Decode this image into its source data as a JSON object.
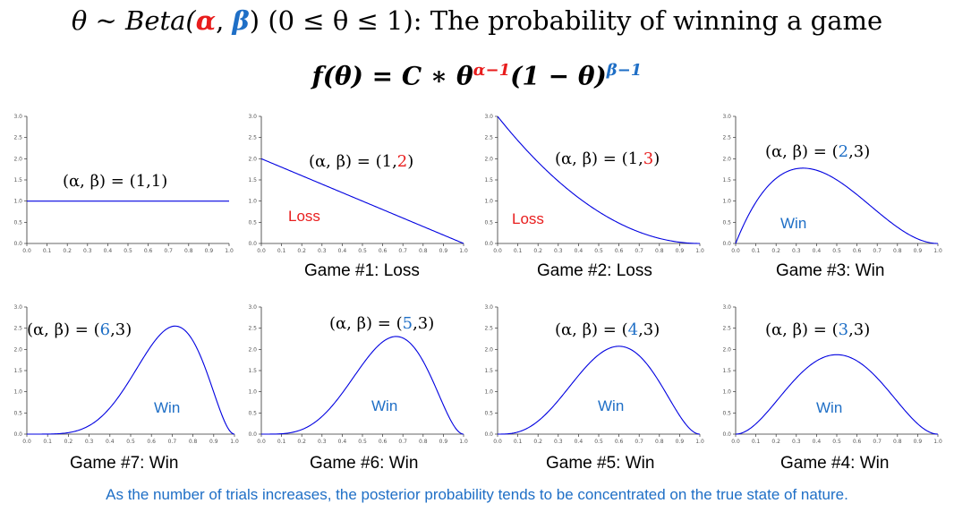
{
  "header": {
    "line1_prefix": "θ ~ Beta(",
    "alpha": "α",
    "comma": ", ",
    "beta": "β",
    "line1_suffix": ")  (0 ≤ θ ≤ 1): The probability of winning a game",
    "formula_base": "f(θ) = C ∗ θ",
    "alpha_exp": "α−1",
    "formula_mid": "(1 − θ)",
    "beta_exp": "β−1"
  },
  "colors": {
    "curve": "#0000e0",
    "loss": "#e81d1d",
    "win": "#1f6fc6",
    "highlight_red": "#e81d1d",
    "highlight_blue": "#1f6fc6"
  },
  "footnote": "As the number of trials increases, the posterior probability tends to be concentrated on the true state of nature.",
  "panels": [
    {
      "param_prefix": "(α, β) = (",
      "a": "1",
      "sep": ",",
      "b": "1",
      "param_suffix": ")",
      "hl": "none",
      "outcome": "",
      "outcome_color": "",
      "caption": ""
    },
    {
      "param_prefix": "(α, β) = (",
      "a": "1",
      "sep": ",",
      "b": "2",
      "param_suffix": ")",
      "hl": "b-red",
      "outcome": "Loss",
      "outcome_color": "#e81d1d",
      "caption": "Game #1: Loss"
    },
    {
      "param_prefix": "(α, β) = (",
      "a": "1",
      "sep": ",",
      "b": "3",
      "param_suffix": ")",
      "hl": "b-red",
      "outcome": "Loss",
      "outcome_color": "#e81d1d",
      "caption": "Game #2: Loss"
    },
    {
      "param_prefix": "(α, β) = (",
      "a": "2",
      "sep": ",",
      "b": "3",
      "param_suffix": ")",
      "hl": "a-blue",
      "outcome": "Win",
      "outcome_color": "#1f6fc6",
      "caption": "Game #3: Win"
    },
    {
      "param_prefix": "(α, β) = (",
      "a": "6",
      "sep": ",",
      "b": "3",
      "param_suffix": ")",
      "hl": "a-blue",
      "outcome": "Win",
      "outcome_color": "#1f6fc6",
      "caption": "Game #7: Win"
    },
    {
      "param_prefix": "(α, β) = (",
      "a": "5",
      "sep": ",",
      "b": "3",
      "param_suffix": ")",
      "hl": "a-blue",
      "outcome": "Win",
      "outcome_color": "#1f6fc6",
      "caption": "Game #6: Win"
    },
    {
      "param_prefix": "(α, β) = (",
      "a": "4",
      "sep": ",",
      "b": "3",
      "param_suffix": ")",
      "hl": "a-blue",
      "outcome": "Win",
      "outcome_color": "#1f6fc6",
      "caption": "Game #5: Win"
    },
    {
      "param_prefix": "(α, β) = (",
      "a": "3",
      "sep": ",",
      "b": "3",
      "param_suffix": ")",
      "hl": "a-blue",
      "outcome": "Win",
      "outcome_color": "#1f6fc6",
      "caption": "Game #4: Win"
    }
  ],
  "chart_data": [
    {
      "type": "line",
      "function": "beta_pdf",
      "alpha": 1,
      "beta": 1,
      "xlim": [
        0,
        1
      ],
      "ylim": [
        0,
        3
      ],
      "xticks": [
        "0.0",
        "0.1",
        "0.2",
        "0.3",
        "0.4",
        "0.5",
        "0.6",
        "0.7",
        "0.8",
        "0.9",
        "1.0"
      ],
      "yticks": [
        "0.0",
        "0.5",
        "1.0",
        "1.5",
        "2.0",
        "2.5",
        "3.0"
      ]
    },
    {
      "type": "line",
      "function": "beta_pdf",
      "alpha": 1,
      "beta": 2,
      "xlim": [
        0,
        1
      ],
      "ylim": [
        0,
        3
      ],
      "xticks": [
        "0.0",
        "0.1",
        "0.2",
        "0.3",
        "0.4",
        "0.5",
        "0.6",
        "0.7",
        "0.8",
        "0.9",
        "1.0"
      ],
      "yticks": [
        "0.0",
        "0.5",
        "1.0",
        "1.5",
        "2.0",
        "2.5",
        "3.0"
      ]
    },
    {
      "type": "line",
      "function": "beta_pdf",
      "alpha": 1,
      "beta": 3,
      "xlim": [
        0,
        1
      ],
      "ylim": [
        0,
        3
      ],
      "xticks": [
        "0.0",
        "0.1",
        "0.2",
        "0.3",
        "0.4",
        "0.5",
        "0.6",
        "0.7",
        "0.8",
        "0.9",
        "1.0"
      ],
      "yticks": [
        "0.0",
        "0.5",
        "1.0",
        "1.5",
        "2.0",
        "2.5",
        "3.0"
      ]
    },
    {
      "type": "line",
      "function": "beta_pdf",
      "alpha": 2,
      "beta": 3,
      "xlim": [
        0,
        1
      ],
      "ylim": [
        0,
        3
      ],
      "xticks": [
        "0.0",
        "0.1",
        "0.2",
        "0.3",
        "0.4",
        "0.5",
        "0.6",
        "0.7",
        "0.8",
        "0.9",
        "1.0"
      ],
      "yticks": [
        "0.0",
        "0.5",
        "1.0",
        "1.5",
        "2.0",
        "2.5",
        "3.0"
      ]
    },
    {
      "type": "line",
      "function": "beta_pdf",
      "alpha": 6,
      "beta": 3,
      "xlim": [
        0,
        1
      ],
      "ylim": [
        0,
        3
      ],
      "xticks": [
        "0.0",
        "0.1",
        "0.2",
        "0.3",
        "0.4",
        "0.5",
        "0.6",
        "0.7",
        "0.8",
        "0.9",
        "1.0"
      ],
      "yticks": [
        "0.0",
        "0.5",
        "1.0",
        "1.5",
        "2.0",
        "2.5",
        "3.0"
      ]
    },
    {
      "type": "line",
      "function": "beta_pdf",
      "alpha": 5,
      "beta": 3,
      "xlim": [
        0,
        1
      ],
      "ylim": [
        0,
        3
      ],
      "xticks": [
        "0.0",
        "0.1",
        "0.2",
        "0.3",
        "0.4",
        "0.5",
        "0.6",
        "0.7",
        "0.8",
        "0.9",
        "1.0"
      ],
      "yticks": [
        "0.0",
        "0.5",
        "1.0",
        "1.5",
        "2.0",
        "2.5",
        "3.0"
      ]
    },
    {
      "type": "line",
      "function": "beta_pdf",
      "alpha": 4,
      "beta": 3,
      "xlim": [
        0,
        1
      ],
      "ylim": [
        0,
        3
      ],
      "xticks": [
        "0.0",
        "0.1",
        "0.2",
        "0.3",
        "0.4",
        "0.5",
        "0.6",
        "0.7",
        "0.8",
        "0.9",
        "1.0"
      ],
      "yticks": [
        "0.0",
        "0.5",
        "1.0",
        "1.5",
        "2.0",
        "2.5",
        "3.0"
      ]
    },
    {
      "type": "line",
      "function": "beta_pdf",
      "alpha": 3,
      "beta": 3,
      "xlim": [
        0,
        1
      ],
      "ylim": [
        0,
        3
      ],
      "xticks": [
        "0.0",
        "0.1",
        "0.2",
        "0.3",
        "0.4",
        "0.5",
        "0.6",
        "0.7",
        "0.8",
        "0.9",
        "1.0"
      ],
      "yticks": [
        "0.0",
        "0.5",
        "1.0",
        "1.5",
        "2.0",
        "2.5",
        "3.0"
      ]
    }
  ]
}
